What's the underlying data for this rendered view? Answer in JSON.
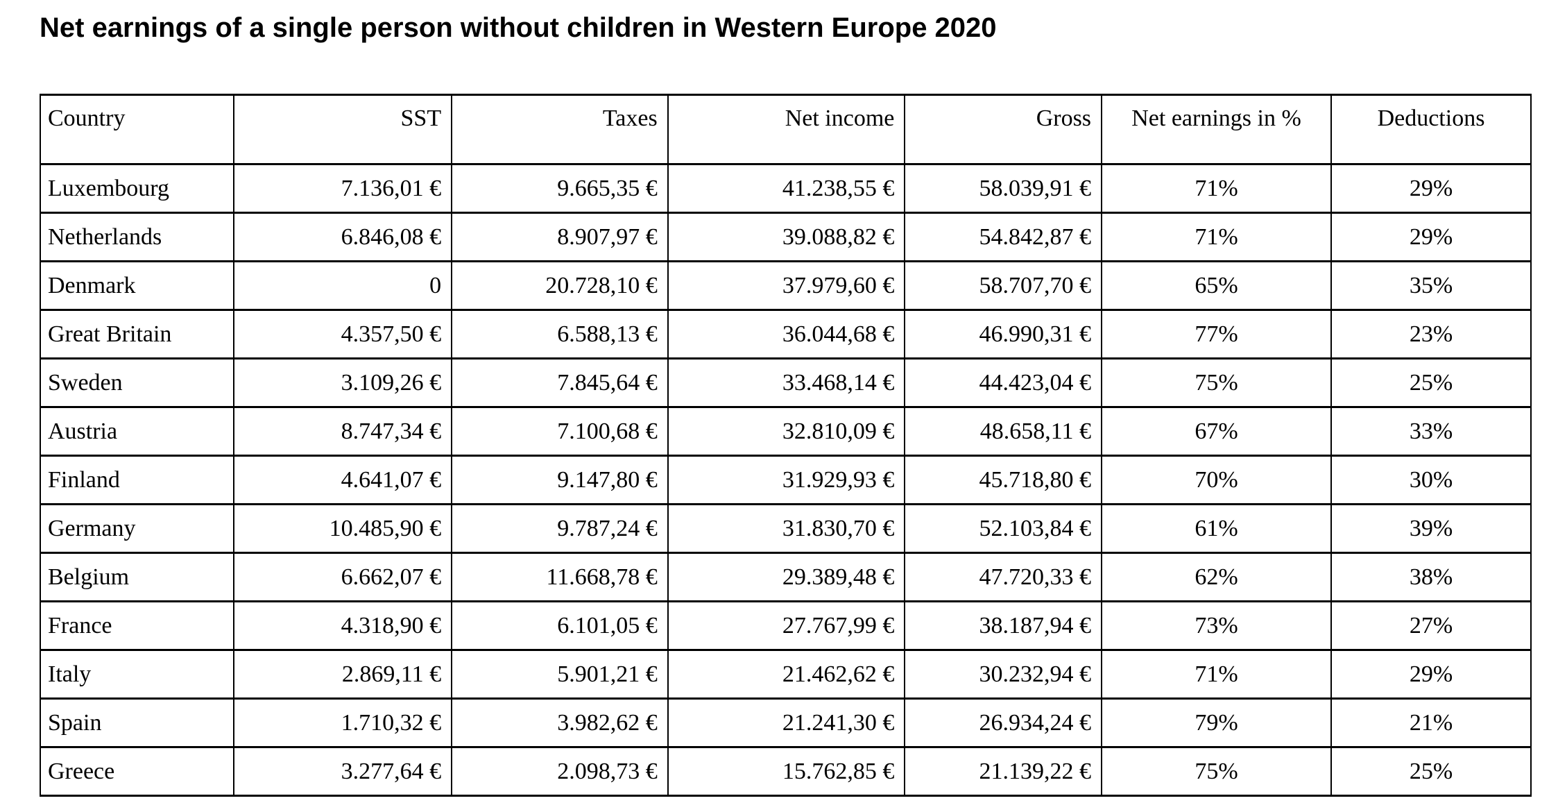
{
  "title": "Net earnings of a single person without children in Western Europe 2020",
  "table": {
    "headers": [
      "Country",
      "SST",
      "Taxes",
      "Net income",
      "Gross",
      "Net earnings in %",
      "Deductions"
    ],
    "rows": [
      [
        "Luxembourg",
        "7.136,01 €",
        "9.665,35 €",
        "41.238,55 €",
        "58.039,91 €",
        "71%",
        "29%"
      ],
      [
        "Netherlands",
        "6.846,08 €",
        "8.907,97 €",
        "39.088,82 €",
        "54.842,87 €",
        "71%",
        "29%"
      ],
      [
        "Denmark",
        "0",
        "20.728,10 €",
        "37.979,60 €",
        "58.707,70 €",
        "65%",
        "35%"
      ],
      [
        "Great Britain",
        "4.357,50 €",
        "6.588,13 €",
        "36.044,68 €",
        "46.990,31 €",
        "77%",
        "23%"
      ],
      [
        "Sweden",
        "3.109,26 €",
        "7.845,64 €",
        "33.468,14 €",
        "44.423,04 €",
        "75%",
        "25%"
      ],
      [
        "Austria",
        "8.747,34 €",
        "7.100,68 €",
        "32.810,09 €",
        "48.658,11 €",
        "67%",
        "33%"
      ],
      [
        "Finland",
        "4.641,07 €",
        "9.147,80 €",
        "31.929,93 €",
        "45.718,80 €",
        "70%",
        "30%"
      ],
      [
        "Germany",
        "10.485,90 €",
        "9.787,24 €",
        "31.830,70 €",
        "52.103,84 €",
        "61%",
        "39%"
      ],
      [
        "Belgium",
        "6.662,07 €",
        "11.668,78 €",
        "29.389,48 €",
        "47.720,33 €",
        "62%",
        "38%"
      ],
      [
        "France",
        "4.318,90 €",
        "6.101,05 €",
        "27.767,99 €",
        "38.187,94 €",
        "73%",
        "27%"
      ],
      [
        "Italy",
        "2.869,11 €",
        "5.901,21 €",
        "21.462,62 €",
        "30.232,94 €",
        "71%",
        "29%"
      ],
      [
        "Spain",
        "1.710,32 €",
        "3.982,62 €",
        "21.241,30 €",
        "26.934,24 €",
        "79%",
        "21%"
      ],
      [
        "Greece",
        "3.277,64 €",
        "2.098,73 €",
        "15.762,85 €",
        "21.139,22 €",
        "75%",
        "25%"
      ]
    ]
  },
  "chart_data": {
    "type": "table",
    "title": "Net earnings of a single person without children in Western Europe 2020",
    "columns": [
      "Country",
      "SST",
      "Taxes",
      "Net income",
      "Gross",
      "Net earnings in %",
      "Deductions"
    ],
    "units": {
      "SST": "EUR",
      "Taxes": "EUR",
      "Net income": "EUR",
      "Gross": "EUR",
      "Net earnings in %": "percent",
      "Deductions": "percent"
    },
    "rows": [
      {
        "country": "Luxembourg",
        "sst_eur": 7136.01,
        "taxes_eur": 9665.35,
        "net_income_eur": 41238.55,
        "gross_eur": 58039.91,
        "net_earnings_pct": 71,
        "deductions_pct": 29
      },
      {
        "country": "Netherlands",
        "sst_eur": 6846.08,
        "taxes_eur": 8907.97,
        "net_income_eur": 39088.82,
        "gross_eur": 54842.87,
        "net_earnings_pct": 71,
        "deductions_pct": 29
      },
      {
        "country": "Denmark",
        "sst_eur": 0,
        "taxes_eur": 20728.1,
        "net_income_eur": 37979.6,
        "gross_eur": 58707.7,
        "net_earnings_pct": 65,
        "deductions_pct": 35
      },
      {
        "country": "Great Britain",
        "sst_eur": 4357.5,
        "taxes_eur": 6588.13,
        "net_income_eur": 36044.68,
        "gross_eur": 46990.31,
        "net_earnings_pct": 77,
        "deductions_pct": 23
      },
      {
        "country": "Sweden",
        "sst_eur": 3109.26,
        "taxes_eur": 7845.64,
        "net_income_eur": 33468.14,
        "gross_eur": 44423.04,
        "net_earnings_pct": 75,
        "deductions_pct": 25
      },
      {
        "country": "Austria",
        "sst_eur": 8747.34,
        "taxes_eur": 7100.68,
        "net_income_eur": 32810.09,
        "gross_eur": 48658.11,
        "net_earnings_pct": 67,
        "deductions_pct": 33
      },
      {
        "country": "Finland",
        "sst_eur": 4641.07,
        "taxes_eur": 9147.8,
        "net_income_eur": 31929.93,
        "gross_eur": 45718.8,
        "net_earnings_pct": 70,
        "deductions_pct": 30
      },
      {
        "country": "Germany",
        "sst_eur": 10485.9,
        "taxes_eur": 9787.24,
        "net_income_eur": 31830.7,
        "gross_eur": 52103.84,
        "net_earnings_pct": 61,
        "deductions_pct": 39
      },
      {
        "country": "Belgium",
        "sst_eur": 6662.07,
        "taxes_eur": 11668.78,
        "net_income_eur": 29389.48,
        "gross_eur": 47720.33,
        "net_earnings_pct": 62,
        "deductions_pct": 38
      },
      {
        "country": "France",
        "sst_eur": 4318.9,
        "taxes_eur": 6101.05,
        "net_income_eur": 27767.99,
        "gross_eur": 38187.94,
        "net_earnings_pct": 73,
        "deductions_pct": 27
      },
      {
        "country": "Italy",
        "sst_eur": 2869.11,
        "taxes_eur": 5901.21,
        "net_income_eur": 21462.62,
        "gross_eur": 30232.94,
        "net_earnings_pct": 71,
        "deductions_pct": 29
      },
      {
        "country": "Spain",
        "sst_eur": 1710.32,
        "taxes_eur": 3982.62,
        "net_income_eur": 21241.3,
        "gross_eur": 26934.24,
        "net_earnings_pct": 79,
        "deductions_pct": 21
      },
      {
        "country": "Greece",
        "sst_eur": 3277.64,
        "taxes_eur": 2098.73,
        "net_income_eur": 15762.85,
        "gross_eur": 21139.22,
        "net_earnings_pct": 75,
        "deductions_pct": 25
      }
    ]
  }
}
